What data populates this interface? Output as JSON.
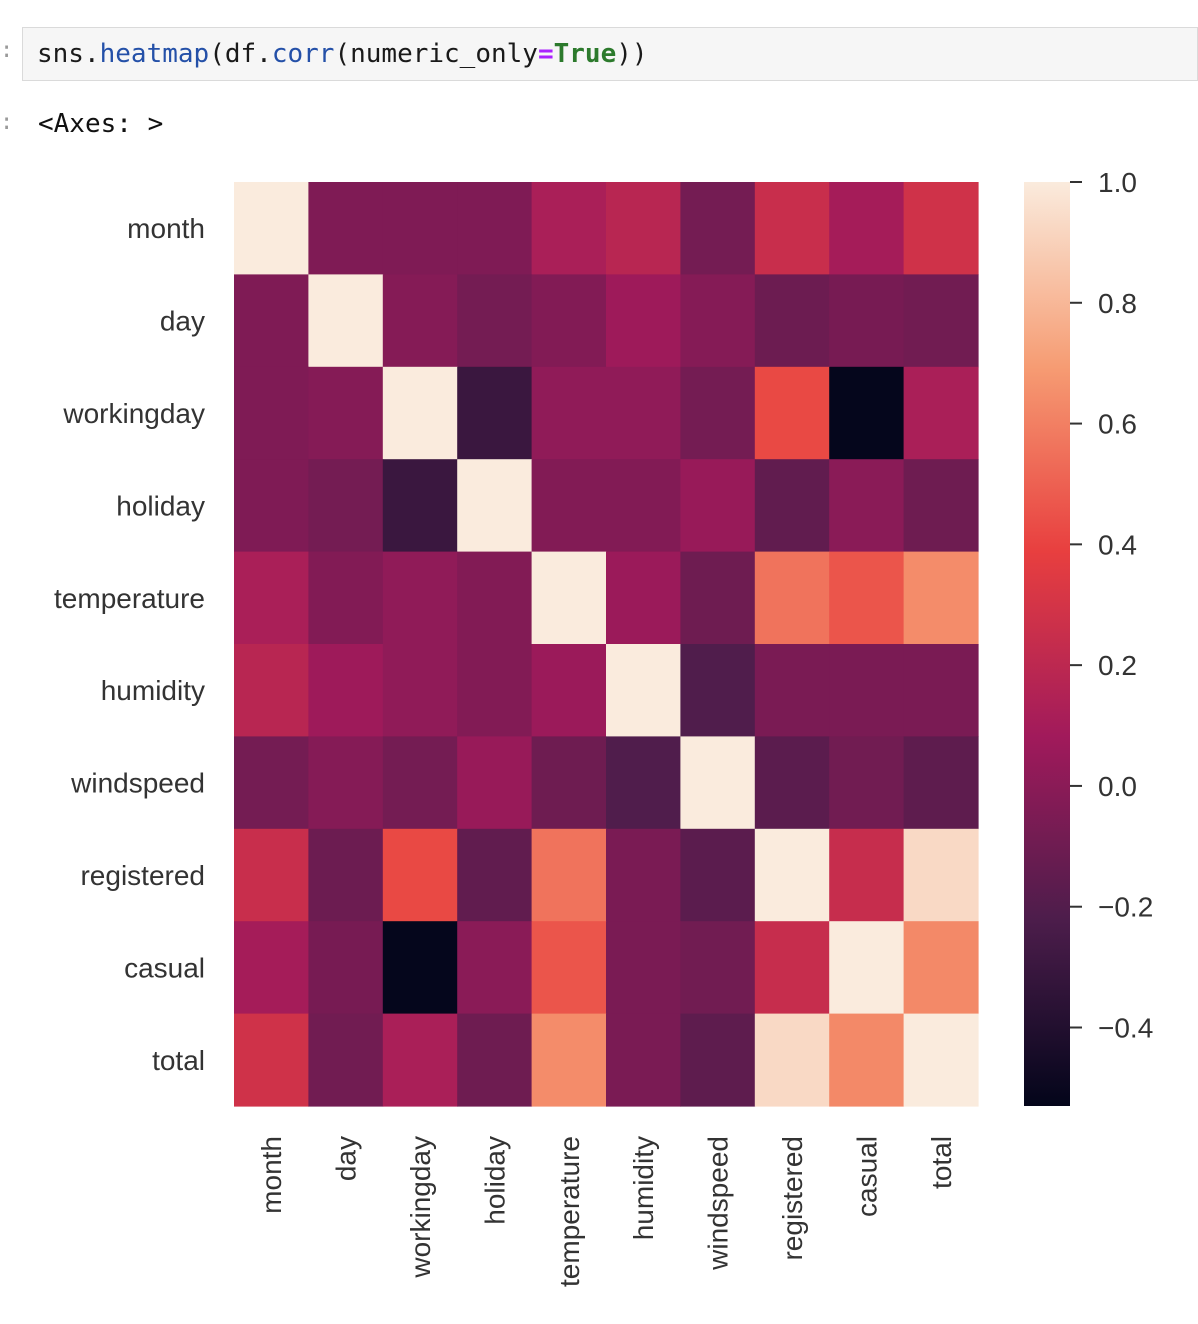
{
  "cell": {
    "code_tokens": [
      {
        "text": "sns.",
        "cls": ""
      },
      {
        "text": "heatmap",
        "cls": "tok-fn"
      },
      {
        "text": "(df.",
        "cls": ""
      },
      {
        "text": "corr",
        "cls": "tok-fn"
      },
      {
        "text": "(numeric_only",
        "cls": ""
      },
      {
        "text": "=",
        "cls": "tok-eq"
      },
      {
        "text": "True",
        "cls": "tok-kw"
      },
      {
        "text": "))",
        "cls": ""
      }
    ],
    "output_text": "<Axes: >"
  },
  "chart_data": {
    "type": "heatmap",
    "title": "",
    "row_labels": [
      "month",
      "day",
      "workingday",
      "holiday",
      "temperature",
      "humidity",
      "windspeed",
      "registered",
      "casual",
      "total"
    ],
    "col_labels": [
      "month",
      "day",
      "workingday",
      "holiday",
      "temperature",
      "humidity",
      "windspeed",
      "registered",
      "casual",
      "total"
    ],
    "values": [
      [
        1.0,
        -0.04,
        -0.04,
        -0.04,
        0.12,
        0.18,
        -0.08,
        0.25,
        0.1,
        0.28
      ],
      [
        -0.04,
        1.0,
        -0.02,
        -0.08,
        -0.03,
        0.07,
        -0.02,
        -0.11,
        -0.07,
        -0.09
      ],
      [
        -0.04,
        -0.02,
        1.0,
        -0.3,
        0.02,
        0.02,
        -0.08,
        0.42,
        -0.52,
        0.12
      ],
      [
        -0.04,
        -0.08,
        -0.3,
        1.0,
        -0.03,
        -0.03,
        0.05,
        -0.15,
        0.0,
        -0.1
      ],
      [
        0.12,
        -0.03,
        0.02,
        -0.03,
        1.0,
        0.06,
        -0.1,
        0.56,
        0.46,
        0.64
      ],
      [
        0.18,
        0.07,
        0.02,
        -0.03,
        0.06,
        1.0,
        -0.21,
        -0.06,
        -0.06,
        -0.06
      ],
      [
        -0.08,
        -0.02,
        -0.08,
        0.05,
        -0.1,
        -0.21,
        1.0,
        -0.17,
        -0.09,
        -0.16
      ],
      [
        0.25,
        -0.11,
        0.42,
        -0.15,
        0.56,
        -0.06,
        -0.17,
        1.0,
        0.24,
        0.93
      ],
      [
        0.1,
        -0.07,
        -0.52,
        0.0,
        0.46,
        -0.06,
        -0.09,
        0.24,
        1.0,
        0.63
      ],
      [
        0.28,
        -0.09,
        0.12,
        -0.1,
        0.64,
        -0.06,
        -0.16,
        0.93,
        0.63,
        1.0
      ]
    ],
    "vmin": -0.53,
    "vmax": 1.0,
    "colorbar_ticks": [
      1.0,
      0.8,
      0.6,
      0.4,
      0.2,
      0.0,
      -0.2,
      -0.4
    ],
    "colorbar_tick_labels": [
      "1.0",
      "0.8",
      "0.6",
      "0.4",
      "0.2",
      "0.0",
      "−0.2",
      "−0.4"
    ],
    "colormap": "rocket",
    "colormap_stops": [
      "#03051a",
      "#4c1d4b",
      "#a11a5b",
      "#e83f3f",
      "#f69c73",
      "#faebdd"
    ]
  }
}
